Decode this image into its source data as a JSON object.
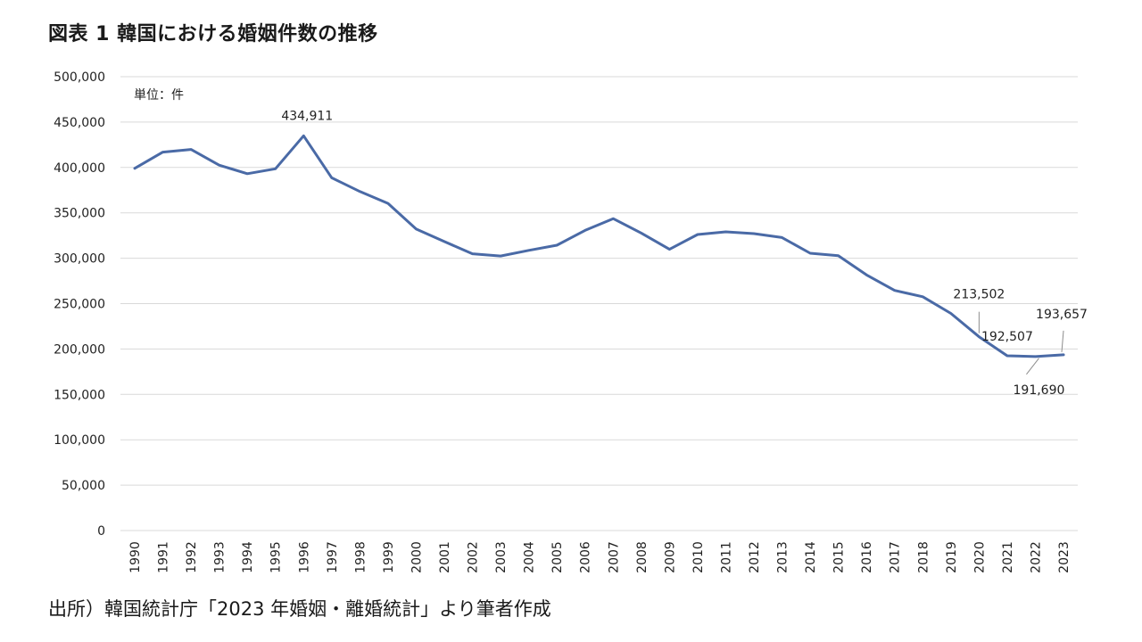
{
  "title": "図表 1 韓国における婚姻件数の推移",
  "source_note": "出所）韓国統計庁「2023 年婚姻・離婚統計」より筆者作成",
  "chart_data": {
    "type": "line",
    "unit_label": "単位：件",
    "ylim": [
      0,
      500000
    ],
    "y_ticks": [
      0,
      50000,
      100000,
      150000,
      200000,
      250000,
      300000,
      350000,
      400000,
      450000,
      500000
    ],
    "y_tick_labels": [
      "0",
      "50,000",
      "100,000",
      "150,000",
      "200,000",
      "250,000",
      "300,000",
      "350,000",
      "400,000",
      "450,000",
      "500,000"
    ],
    "grid": "horizontal",
    "categories": [
      "1990",
      "1991",
      "1992",
      "1993",
      "1994",
      "1995",
      "1996",
      "1997",
      "1998",
      "1999",
      "2000",
      "2001",
      "2002",
      "2003",
      "2004",
      "2005",
      "2006",
      "2007",
      "2008",
      "2009",
      "2010",
      "2011",
      "2012",
      "2013",
      "2014",
      "2015",
      "2016",
      "2017",
      "2018",
      "2019",
      "2020",
      "2021",
      "2022",
      "2023"
    ],
    "series": [
      {
        "values": [
          399000,
          416900,
          419800,
          402600,
          393100,
          398500,
          434911,
          388600,
          373500,
          360400,
          332100,
          318400,
          304900,
          302500,
          308600,
          314300,
          330600,
          343600,
          327700,
          309800,
          326100,
          329100,
          327100,
          322800,
          305500,
          302800,
          281600,
          264500,
          257600,
          239200,
          213502,
          192507,
          191690,
          193657
        ],
        "color": "#4a6aa6"
      }
    ],
    "annotations": [
      {
        "category": "1996",
        "text": "434,911"
      },
      {
        "category": "2020",
        "text": "213,502"
      },
      {
        "category": "2021",
        "text": "192,507"
      },
      {
        "category": "2022",
        "text": "191,690"
      },
      {
        "category": "2023",
        "text": "193,657"
      }
    ]
  }
}
